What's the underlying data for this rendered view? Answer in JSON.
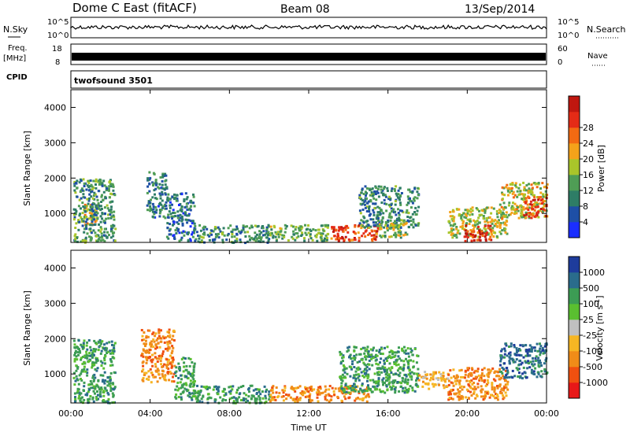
{
  "header": {
    "station": "Dome C East (fitACF)",
    "beam": "Beam 08",
    "date": "13/Sep/2014"
  },
  "labels": {
    "nsky": "N.Sky",
    "nsearch": "N.Search",
    "freq": "Freq.",
    "freq_unit": "[MHz]",
    "nave": "Nave",
    "cpid": "CPID",
    "cpid_value": "twofsound 3501"
  },
  "top_ticks": {
    "noise": [
      "10^5",
      "10^0"
    ],
    "freq": [
      "18",
      "8"
    ],
    "nave": [
      "60",
      "0"
    ]
  },
  "colors": {
    "power": [
      "#1a2eff",
      "#1e4fa6",
      "#2e7d66",
      "#4f9d55",
      "#a9c52a",
      "#f4a21a",
      "#f26a12",
      "#e42b16",
      "#c0170f"
    ],
    "velocity": [
      "#e81818",
      "#f05010",
      "#f08c18",
      "#f6b623",
      "#c0c0c0",
      "#5abf30",
      "#3c9c54",
      "#2a6c8c",
      "#1e3c9c"
    ]
  },
  "chart_data": [
    {
      "type": "heatmap",
      "name": "power",
      "xlabel": "",
      "ylabel": "Slant Range [km]",
      "x_ticks": [
        "00:00",
        "04:00",
        "08:00",
        "12:00",
        "16:00",
        "20:00",
        "00:00"
      ],
      "y_ticks": [
        1000,
        2000,
        3000,
        4000
      ],
      "ylim": [
        180,
        4500
      ],
      "xlim": [
        0,
        24
      ],
      "colorbar": {
        "label": "Power [dB]",
        "ticks": [
          "4",
          "8",
          "12",
          "16",
          "20",
          "24",
          "28"
        ],
        "range": [
          0,
          30
        ]
      },
      "patches": [
        {
          "t": [
            0.6,
            1.4
          ],
          "r": [
            700,
            1300
          ],
          "v": 18
        },
        {
          "t": [
            0.1,
            2.2
          ],
          "r": [
            200,
            2000
          ],
          "v": 10
        },
        {
          "t": [
            3.8,
            4.8
          ],
          "r": [
            900,
            2200
          ],
          "v": 8
        },
        {
          "t": [
            4.8,
            6.2
          ],
          "r": [
            250,
            1600
          ],
          "v": 7
        },
        {
          "t": [
            6.2,
            10.0
          ],
          "r": [
            200,
            700
          ],
          "v": 9
        },
        {
          "t": [
            10.0,
            13.0
          ],
          "r": [
            250,
            700
          ],
          "v": 12
        },
        {
          "t": [
            13.0,
            15.5
          ],
          "r": [
            250,
            700
          ],
          "v": 24
        },
        {
          "t": [
            14.5,
            17.5
          ],
          "r": [
            600,
            1800
          ],
          "v": 9
        },
        {
          "t": [
            15.5,
            17.0
          ],
          "r": [
            350,
            800
          ],
          "v": 14
        },
        {
          "t": [
            19.0,
            22.0
          ],
          "r": [
            350,
            1200
          ],
          "v": 15
        },
        {
          "t": [
            19.8,
            21.2
          ],
          "r": [
            250,
            700
          ],
          "v": 26
        },
        {
          "t": [
            21.6,
            24.0
          ],
          "r": [
            900,
            1900
          ],
          "v": 16
        },
        {
          "t": [
            22.8,
            24.0
          ],
          "r": [
            900,
            1500
          ],
          "v": 24
        }
      ]
    },
    {
      "type": "heatmap",
      "name": "velocity",
      "xlabel": "Time UT",
      "ylabel": "Slant Range [km]",
      "x_ticks": [
        "00:00",
        "04:00",
        "08:00",
        "12:00",
        "16:00",
        "20:00",
        "00:00"
      ],
      "y_ticks": [
        1000,
        2000,
        3000,
        4000
      ],
      "ylim": [
        180,
        4500
      ],
      "xlim": [
        0,
        24
      ],
      "colorbar": {
        "label": "Velocity [m s^-1]",
        "ticks": [
          "-1000",
          "-500",
          "-100",
          "-25",
          "25",
          "100",
          "500",
          "1000"
        ]
      },
      "patches": [
        {
          "t": [
            0.1,
            2.2
          ],
          "r": [
            200,
            2000
          ],
          "v": 6
        },
        {
          "t": [
            3.5,
            5.2
          ],
          "r": [
            800,
            2300
          ],
          "v": 2
        },
        {
          "t": [
            5.2,
            6.2
          ],
          "r": [
            300,
            1500
          ],
          "v": 6
        },
        {
          "t": [
            6.2,
            10.0
          ],
          "r": [
            200,
            700
          ],
          "v": 6
        },
        {
          "t": [
            10.0,
            15.0
          ],
          "r": [
            250,
            700
          ],
          "v": 2
        },
        {
          "t": [
            13.5,
            17.5
          ],
          "r": [
            500,
            1800
          ],
          "v": 6
        },
        {
          "t": [
            17.5,
            19.0
          ],
          "r": [
            600,
            1100
          ],
          "v": 3
        },
        {
          "t": [
            19.0,
            22.0
          ],
          "r": [
            300,
            1200
          ],
          "v": 2
        },
        {
          "t": [
            21.6,
            24.0
          ],
          "r": [
            900,
            1900
          ],
          "v": 7
        }
      ]
    }
  ]
}
